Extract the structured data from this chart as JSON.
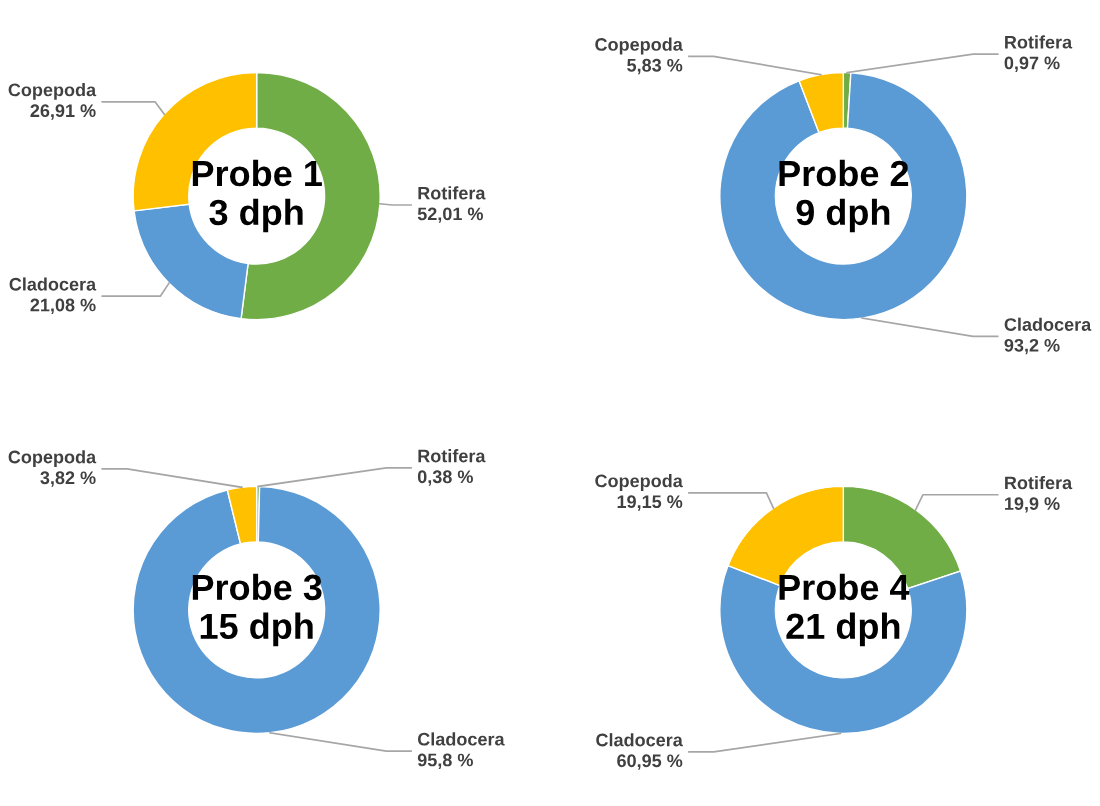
{
  "chart_data": [
    {
      "type": "donut",
      "title": "Probe 1\n3 dph",
      "categories": [
        "Rotifera",
        "Cladocera",
        "Copepoda"
      ],
      "values": [
        52.01,
        21.08,
        26.91
      ],
      "value_labels": [
        "52,01 %",
        "21,08 %",
        "26,91 %"
      ],
      "colors": [
        "#70ad47",
        "#5b9bd5",
        "#ffc000"
      ]
    },
    {
      "type": "donut",
      "title": "Probe 2\n9 dph",
      "categories": [
        "Rotifera",
        "Cladocera",
        "Copepoda"
      ],
      "values": [
        0.97,
        93.2,
        5.83
      ],
      "value_labels": [
        "0,97 %",
        "93,2 %",
        "5,83 %"
      ],
      "colors": [
        "#70ad47",
        "#5b9bd5",
        "#ffc000"
      ]
    },
    {
      "type": "donut",
      "title": "Probe 3\n15 dph",
      "categories": [
        "Rotifera",
        "Cladocera",
        "Copepoda"
      ],
      "values": [
        0.38,
        95.8,
        3.82
      ],
      "value_labels": [
        "0,38 %",
        "95,8 %",
        "3,82 %"
      ],
      "colors": [
        "#70ad47",
        "#5b9bd5",
        "#ffc000"
      ]
    },
    {
      "type": "donut",
      "title": "Probe 4\n21 dph",
      "categories": [
        "Rotifera",
        "Cladocera",
        "Copepoda"
      ],
      "values": [
        19.9,
        60.95,
        19.15
      ],
      "value_labels": [
        "19,9 %",
        "60,95 %",
        "19,15 %"
      ],
      "colors": [
        "#70ad47",
        "#5b9bd5",
        "#ffc000"
      ]
    }
  ]
}
